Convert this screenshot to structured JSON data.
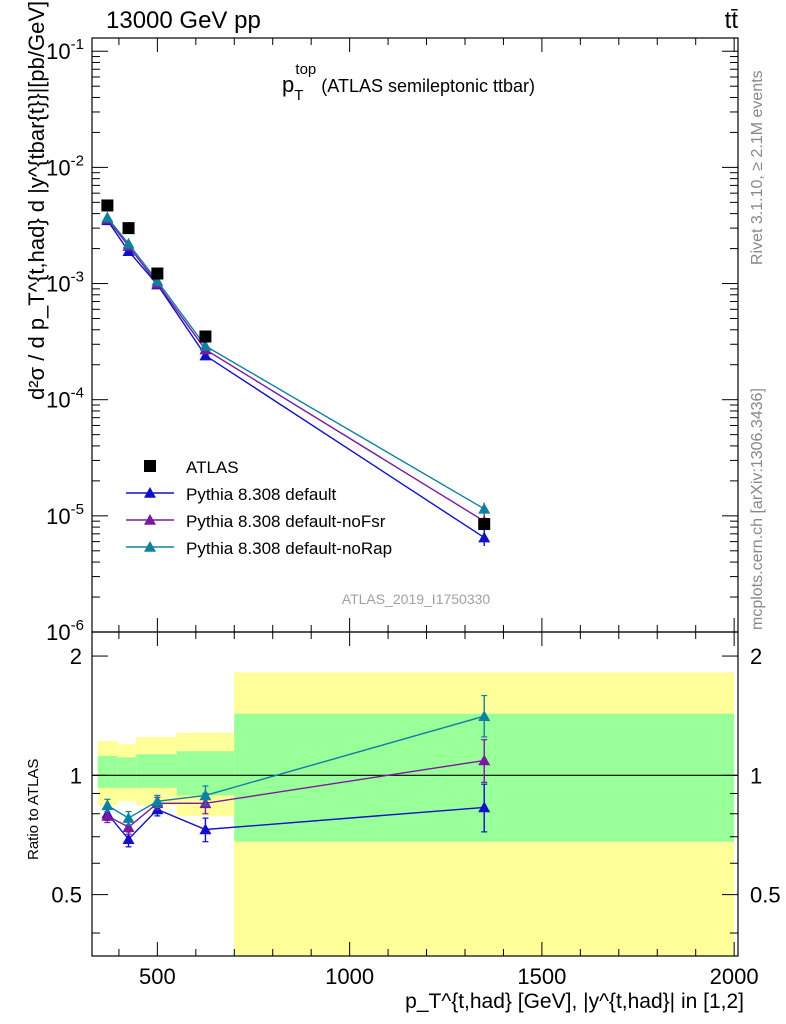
{
  "header": {
    "left": "13000 GeV pp",
    "right": "tt̄"
  },
  "side": {
    "rivet": "Rivet 3.1.10, ≥ 2.1M events",
    "mcplots": "mcplots.cern.ch [arXiv:1306.3436]"
  },
  "plot_title": {
    "main": "p",
    "sub": "T",
    "sup": "top",
    "rest": " (ATLAS semileptonic ttbar)"
  },
  "watermark": "ATLAS_2019_I1750330",
  "ylabel_main": "d²σ / d p_T^{t,had} d |y^{tbar{t}}|[pb/GeV]",
  "ylabel_ratio": "Ratio to ATLAS",
  "xlabel": "p_T^{t,had} [GeV], |y^{t,had}| in [1,2]",
  "colors": {
    "data": "#000000",
    "default": "#1010c8",
    "noFsr": "#7a1aa0",
    "noRap": "#1080a0",
    "band_inner": "#99ff99",
    "band_outer": "#ffff99"
  },
  "chart_data": [
    {
      "type": "scatter",
      "scale": "log",
      "xlim": [
        330,
        2010
      ],
      "ylim": [
        1e-06,
        0.13
      ],
      "ytick_labels": [
        "10^{-6}",
        "10^{-5}",
        "10^{-4}",
        "10^{-3}",
        "10^{-2}",
        "10^{-1}"
      ],
      "x": [
        370,
        425,
        500,
        625,
        1350
      ],
      "series": [
        {
          "name": "ATLAS",
          "key": "data",
          "marker": "square",
          "values": [
            0.0047,
            0.003,
            0.00122,
            0.00035,
            8.5e-06
          ],
          "err_hi": [
            0,
            0,
            0,
            0,
            0
          ],
          "err_lo": [
            0,
            0,
            0,
            0,
            0
          ]
        },
        {
          "name": "Pythia 8.308 default",
          "key": "default",
          "marker": "triangle",
          "values": [
            0.0035,
            0.0019,
            0.00098,
            0.00024,
            6.5e-06
          ],
          "err_hi": [
            0,
            0,
            0,
            0,
            1.2e-06
          ],
          "err_lo": [
            0,
            0,
            0,
            0,
            1e-06
          ]
        },
        {
          "name": "Pythia 8.308 default-noFsr",
          "key": "noFsr",
          "marker": "triangle",
          "values": [
            0.0036,
            0.0021,
            0.001,
            0.00027,
            9e-06
          ],
          "err_hi": [
            0,
            0,
            0,
            0,
            1.2e-06
          ],
          "err_lo": [
            0,
            0,
            0,
            0,
            1.1e-06
          ]
        },
        {
          "name": "Pythia 8.308 default-noRap",
          "key": "noRap",
          "marker": "triangle",
          "values": [
            0.0037,
            0.0022,
            0.00105,
            0.00029,
            1.15e-05
          ],
          "err_hi": [
            0,
            0,
            0,
            0,
            1.5e-06
          ],
          "err_lo": [
            0,
            0,
            0,
            0,
            1.4e-06
          ]
        }
      ]
    },
    {
      "type": "line",
      "scale": "log",
      "xlim": [
        330,
        2010
      ],
      "ylim": [
        0.35,
        2.3
      ],
      "yticks": [
        0.5,
        1,
        2
      ],
      "ytick_labels": [
        "0.5",
        "1",
        "2"
      ],
      "xticks": [
        500,
        1000,
        1500,
        2000
      ],
      "xtick_labels": [
        "500",
        "1000",
        "1500",
        "2000"
      ],
      "reference_line": 1,
      "bins": [
        {
          "x0": 345,
          "x1": 397,
          "inner": [
            0.93,
            1.12
          ],
          "outer": [
            0.84,
            1.22
          ]
        },
        {
          "x0": 397,
          "x1": 445,
          "inner": [
            0.93,
            1.11
          ],
          "outer": [
            0.86,
            1.2
          ]
        },
        {
          "x0": 445,
          "x1": 550,
          "inner": [
            0.93,
            1.13
          ],
          "outer": [
            0.84,
            1.25
          ]
        },
        {
          "x0": 550,
          "x1": 700,
          "inner": [
            0.89,
            1.15
          ],
          "outer": [
            0.79,
            1.28
          ]
        },
        {
          "x0": 700,
          "x1": 2000,
          "inner": [
            0.68,
            1.43
          ],
          "outer": [
            0.35,
            1.82
          ]
        }
      ],
      "x": [
        370,
        425,
        500,
        625,
        1350
      ],
      "series": [
        {
          "name": "Pythia 8.308 default",
          "key": "default",
          "values": [
            0.8,
            0.69,
            0.82,
            0.73,
            0.83
          ],
          "err_hi": [
            0.03,
            0.03,
            0.03,
            0.05,
            0.12
          ],
          "err_lo": [
            0.03,
            0.03,
            0.03,
            0.05,
            0.11
          ]
        },
        {
          "name": "Pythia 8.308 default-noFsr",
          "key": "noFsr",
          "values": [
            0.79,
            0.74,
            0.85,
            0.85,
            1.09
          ],
          "err_hi": [
            0.03,
            0.03,
            0.03,
            0.05,
            0.14
          ],
          "err_lo": [
            0.03,
            0.03,
            0.03,
            0.05,
            0.13
          ]
        },
        {
          "name": "Pythia 8.308 default-noRap",
          "key": "noRap",
          "values": [
            0.84,
            0.78,
            0.86,
            0.89,
            1.41
          ],
          "err_hi": [
            0.03,
            0.03,
            0.03,
            0.05,
            0.18
          ],
          "err_lo": [
            0.03,
            0.03,
            0.03,
            0.05,
            0.16
          ]
        }
      ]
    }
  ]
}
